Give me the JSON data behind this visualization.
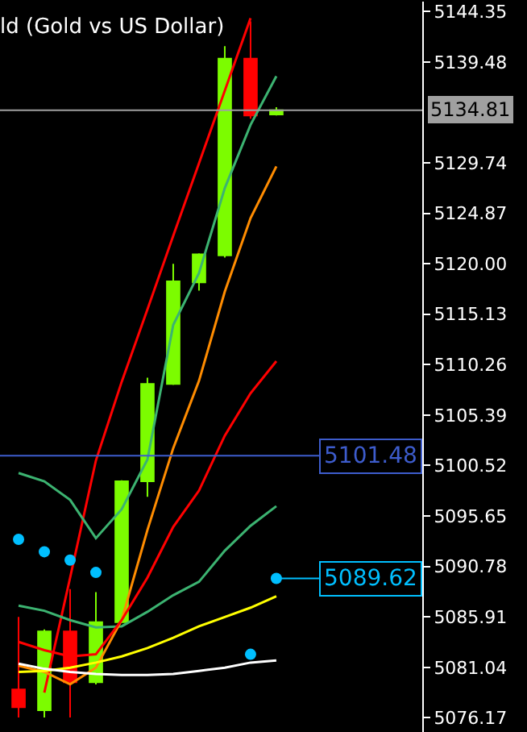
{
  "chart_data": {
    "type": "candlestick",
    "title": "ld (Gold vs US Dollar)",
    "categories": [
      null,
      null,
      null,
      null,
      null,
      null,
      null,
      null,
      null,
      null,
      null,
      null,
      null,
      null,
      null,
      null
    ],
    "ohlc": [
      [
        5078.9,
        5085.9,
        5076.2,
        5077.2
      ],
      [
        5076.9,
        5084.7,
        5076.2,
        5084.5
      ],
      [
        5084.5,
        5088.6,
        5076.2,
        5079.6
      ],
      [
        5079.6,
        5088.3,
        5079.4,
        5085.4
      ],
      [
        5085.4,
        5099.1,
        5085.4,
        5099.0
      ],
      [
        5099.0,
        5109.0,
        5097.5,
        5108.4
      ],
      [
        5108.4,
        5120.0,
        5108.3,
        5118.3
      ],
      [
        5118.2,
        5121.0,
        5117.4,
        5120.9
      ],
      [
        5120.8,
        5141.0,
        5120.6,
        5139.8
      ],
      [
        5139.8,
        5143.4,
        5134.0,
        5134.3
      ],
      [
        5134.4,
        5135.1,
        5134.3,
        5134.81
      ],
      null,
      null,
      null,
      null,
      null
    ],
    "colors": [
      "#ff0000",
      "#7cfc00",
      "#ff0000",
      "#7cfc00",
      "#7cfc00",
      "#7cfc00",
      "#7cfc00",
      "#7cfc00",
      "#7cfc00",
      "#ff0000",
      "#7cfc00",
      null,
      null,
      null,
      null,
      null
    ],
    "series": [
      {
        "type": "line",
        "color": "#ff0000",
        "values": [
          null,
          5078.6,
          5089.7,
          5101.0,
          5108.6,
          5115.6,
          5122.7,
          5129.7,
          5136.7,
          5143.7,
          null,
          null,
          null,
          null,
          null,
          null
        ]
      },
      {
        "type": "line",
        "color": "#3cb371",
        "values": [
          5099.8,
          5099.0,
          5097.2,
          5093.5,
          5096.3,
          5101.1,
          5114.1,
          5119.1,
          5127.3,
          5133.4,
          5138.1,
          null,
          null,
          null,
          null,
          null
        ]
      },
      {
        "type": "line",
        "color": "#3cb371",
        "values": [
          5087.0,
          5086.5,
          5085.6,
          5084.9,
          5085.0,
          5086.4,
          5088.0,
          5089.3,
          5092.3,
          5094.7,
          5096.6,
          null,
          null,
          null,
          null,
          null
        ]
      },
      {
        "type": "line",
        "color": "#ff8c00",
        "values": [
          5081.2,
          5080.6,
          5079.4,
          5081.0,
          5085.6,
          5094.3,
          5102.2,
          5108.7,
          5117.3,
          5124.4,
          5129.4,
          null,
          null,
          null,
          null,
          null
        ]
      },
      {
        "type": "line",
        "color": "#ff0000",
        "values": [
          5083.5,
          5082.7,
          5082.1,
          5082.3,
          5085.6,
          5089.7,
          5094.6,
          5098.1,
          5103.4,
          5107.5,
          5110.6,
          null,
          null,
          null,
          null,
          null
        ]
      },
      {
        "type": "line",
        "color": "#ffff00",
        "values": [
          5080.6,
          5080.7,
          5081.0,
          5081.5,
          5082.1,
          5082.9,
          5083.9,
          5085.0,
          5085.9,
          5086.8,
          5087.9,
          null,
          null,
          null,
          null,
          null
        ]
      },
      {
        "type": "line",
        "color": "#ffffff",
        "values": [
          5081.4,
          5080.9,
          5080.6,
          5080.4,
          5080.3,
          5080.3,
          5080.4,
          5080.7,
          5081.0,
          5081.5,
          5081.7,
          null,
          null,
          null,
          null,
          null
        ]
      },
      {
        "type": "scatter",
        "color": "#00bfff",
        "marker": "circle",
        "values": [
          5093.4,
          5092.2,
          5091.4,
          5090.2,
          null,
          null,
          null,
          null,
          null,
          5082.3,
          5089.62,
          null,
          null,
          null,
          null,
          null
        ]
      }
    ],
    "ylim": [
      5074.8,
      5145.3
    ],
    "yticks": [
      5144.35,
      5139.48,
      5129.74,
      5124.87,
      {
        "value": 5120,
        "label": "5120.00"
      },
      5115.13,
      5110.26,
      5105.39,
      5100.52,
      5095.65,
      5090.78,
      5085.91,
      5081.04,
      5076.17
    ],
    "ref_lines": [
      {
        "axis": "y",
        "value": 5134.81,
        "label": "5134.81",
        "color": "#a0a0a0"
      },
      {
        "axis": "y",
        "value": 5101.48,
        "label": "5101.48",
        "color": "#3d5ccc"
      }
    ],
    "annotations": [
      "5089.62"
    ],
    "tick_labels": "y",
    "grid": false
  }
}
